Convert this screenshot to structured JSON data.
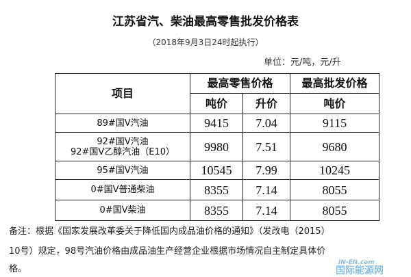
{
  "title": "江苏省汽、柴油最高零售批发价格表",
  "subtitle": "（2018年9月3日24时起执行）",
  "unit": "单位：元/吨，元/升",
  "table": {
    "headers": {
      "item": "项目",
      "retail": "最高零售价格",
      "wholesale": "最高批发价格",
      "retail_ton": "吨价",
      "retail_liter": "升价",
      "wholesale_ton": "吨价"
    },
    "rows": [
      {
        "item": [
          "89#国Ⅴ汽油"
        ],
        "retail_ton": "9415",
        "retail_liter": "7.04",
        "wholesale_ton": "9115"
      },
      {
        "item": [
          "92#国Ⅴ汽油",
          "92#国Ⅴ乙醇汽油（E10）"
        ],
        "retail_ton": "9980",
        "retail_liter": "7.51",
        "wholesale_ton": "9680"
      },
      {
        "item": [
          "95#国Ⅴ汽油"
        ],
        "retail_ton": "10545",
        "retail_liter": "7.99",
        "wholesale_ton": "10245"
      },
      {
        "item": [
          "0#国Ⅴ普通柴油"
        ],
        "retail_ton": "8355",
        "retail_liter": "7.14",
        "wholesale_ton": "8055"
      },
      {
        "item": [
          "0#国Ⅴ柴油"
        ],
        "retail_ton": "8355",
        "retail_liter": "7.14",
        "wholesale_ton": "8055"
      }
    ]
  },
  "note": [
    "备注：根据《国家发展改革委关于降低国内成品油价格的通知》（发改电（2015）",
    "10号）规定，98号汽油价格由成品油生产经营企业根据市场情况自主制定具体价",
    "格。"
  ],
  "watermark": {
    "en": "IN-EN.com",
    "cn": "国际能源网"
  }
}
